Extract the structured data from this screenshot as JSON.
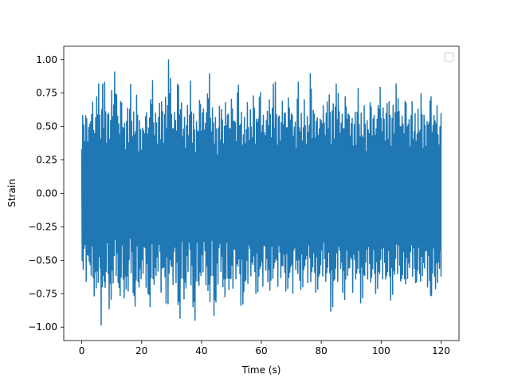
{
  "chart_data": {
    "type": "line",
    "title": "",
    "xlabel": "Time (s)",
    "ylabel": "Strain",
    "xlim": [
      -6,
      126
    ],
    "ylim": [
      -1.1,
      1.1
    ],
    "x_ticks": [
      0,
      20,
      40,
      60,
      80,
      100,
      120
    ],
    "x_tick_labels": [
      "0",
      "20",
      "40",
      "60",
      "80",
      "100",
      "120"
    ],
    "y_ticks": [
      -1.0,
      -0.75,
      -0.5,
      -0.25,
      0.0,
      0.25,
      0.5,
      0.75,
      1.0
    ],
    "y_tick_labels": [
      "−1.00",
      "−0.75",
      "−0.50",
      "−0.25",
      "0.00",
      "0.25",
      "0.50",
      "0.75",
      "1.00"
    ],
    "grid": false,
    "legend": {
      "placement": "top-right",
      "entries": []
    },
    "series": [
      {
        "color": "#1f77b4",
        "x": [
          0,
          1,
          2,
          3,
          4,
          5,
          6,
          7,
          8,
          9,
          10,
          11,
          12,
          13,
          14,
          15,
          16,
          17,
          18,
          19,
          20,
          21,
          22,
          23,
          24,
          25,
          26,
          27,
          28,
          29,
          30,
          31,
          32,
          33,
          34,
          35,
          36,
          37,
          38,
          39,
          40,
          41,
          42,
          43,
          44,
          45,
          46,
          47,
          48,
          49,
          50,
          51,
          52,
          53,
          54,
          55,
          56,
          57,
          58,
          59,
          60,
          61,
          62,
          63,
          64,
          65,
          66,
          67,
          68,
          69,
          70,
          71,
          72,
          73,
          74,
          75,
          76,
          77,
          78,
          79,
          80,
          81,
          82,
          83,
          84,
          85,
          86,
          87,
          88,
          89,
          90,
          91,
          92,
          93,
          94,
          95,
          96,
          97,
          98,
          99,
          100,
          101,
          102,
          103,
          104,
          105,
          106,
          107,
          108,
          109,
          110,
          111,
          112,
          113,
          114,
          115,
          116,
          117,
          118,
          119,
          120
        ],
        "max": [
          0.6,
          0.62,
          0.55,
          0.7,
          0.57,
          0.82,
          0.63,
          0.85,
          0.62,
          0.6,
          0.77,
          0.92,
          0.6,
          0.74,
          0.55,
          0.65,
          0.82,
          0.61,
          0.74,
          0.56,
          0.52,
          0.64,
          0.58,
          0.85,
          0.6,
          0.57,
          0.7,
          0.62,
          0.72,
          1.0,
          0.6,
          0.63,
          0.88,
          0.71,
          0.58,
          0.66,
          0.84,
          0.6,
          0.55,
          0.74,
          0.67,
          0.62,
          0.9,
          0.64,
          0.57,
          0.5,
          0.66,
          0.55,
          0.68,
          0.6,
          0.73,
          0.58,
          0.85,
          0.62,
          0.57,
          0.68,
          0.63,
          0.75,
          0.59,
          0.8,
          0.6,
          0.55,
          0.7,
          0.64,
          0.85,
          0.6,
          0.58,
          0.69,
          0.61,
          0.74,
          0.64,
          0.56,
          0.85,
          0.6,
          0.7,
          0.58,
          0.92,
          0.66,
          0.6,
          0.57,
          0.66,
          0.6,
          0.74,
          0.63,
          0.68,
          0.82,
          0.61,
          0.6,
          0.75,
          0.64,
          0.59,
          0.62,
          0.79,
          0.6,
          0.66,
          0.56,
          0.72,
          0.62,
          0.57,
          0.8,
          0.64,
          0.6,
          0.7,
          0.59,
          0.66,
          0.82,
          0.62,
          0.6,
          0.74,
          0.58,
          0.7,
          0.6,
          0.63,
          0.75,
          0.6,
          0.57,
          0.77,
          0.6,
          0.66,
          0.5,
          0.6
        ],
        "min": [
          -0.6,
          -0.66,
          -0.58,
          -0.63,
          -0.78,
          -0.7,
          -0.99,
          -0.76,
          -0.6,
          -0.88,
          -0.7,
          -0.62,
          -0.82,
          -0.64,
          -0.8,
          -0.76,
          -0.6,
          -0.9,
          -0.66,
          -0.72,
          -0.62,
          -0.71,
          -0.9,
          -0.64,
          -0.7,
          -0.6,
          -0.75,
          -0.66,
          -0.83,
          -0.62,
          -0.7,
          -0.68,
          -0.98,
          -0.64,
          -0.82,
          -0.6,
          -0.7,
          -0.99,
          -0.66,
          -0.72,
          -0.6,
          -0.7,
          -0.84,
          -0.62,
          -0.96,
          -0.69,
          -0.6,
          -0.8,
          -0.64,
          -0.76,
          -0.72,
          -0.66,
          -0.62,
          -0.84,
          -0.78,
          -0.68,
          -0.64,
          -0.6,
          -0.75,
          -0.66,
          -0.7,
          -0.6,
          -0.74,
          -0.65,
          -0.6,
          -0.7,
          -0.66,
          -0.6,
          -0.73,
          -0.68,
          -0.75,
          -0.6,
          -0.66,
          -0.72,
          -0.62,
          -0.67,
          -0.7,
          -0.6,
          -0.74,
          -0.68,
          -0.62,
          -0.7,
          -0.6,
          -0.88,
          -0.72,
          -0.66,
          -0.6,
          -0.8,
          -0.64,
          -0.62,
          -0.74,
          -0.69,
          -0.6,
          -0.82,
          -0.68,
          -0.64,
          -0.72,
          -0.6,
          -0.75,
          -0.66,
          -0.64,
          -0.7,
          -0.62,
          -0.8,
          -0.66,
          -0.6,
          -0.72,
          -0.64,
          -0.68,
          -0.6,
          -0.62,
          -0.74,
          -0.6,
          -0.66,
          -0.6,
          -0.7,
          -0.85,
          -0.62,
          -0.72,
          -0.6,
          -0.62
        ]
      }
    ]
  }
}
